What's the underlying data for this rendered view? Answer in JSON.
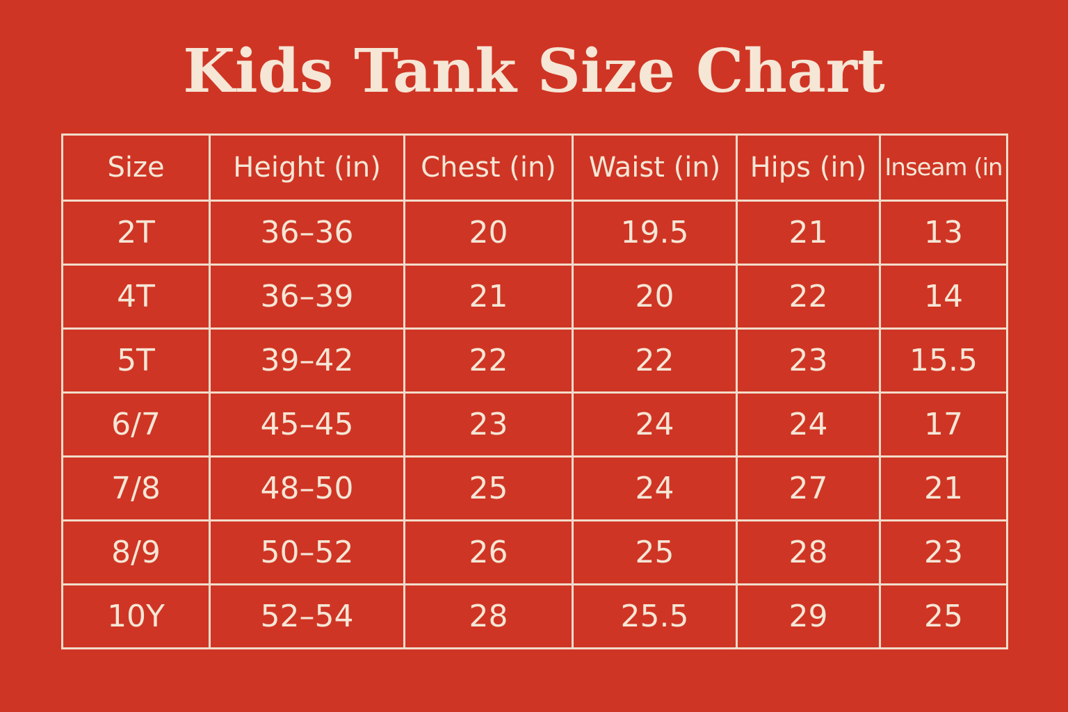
{
  "title": "Kids Tank Size Chart",
  "colors": {
    "background": "#cf3524",
    "text": "#f5e6d6",
    "grid": "#f2dccb"
  },
  "chart_data": {
    "type": "table",
    "title": "Kids Tank Size Chart",
    "columns": [
      "Size",
      "Height (in)",
      "Chest (in)",
      "Waist (in)",
      "Hips (in)",
      "Inseam (in"
    ],
    "rows": [
      [
        "2T",
        "36–36",
        "20",
        "19.5",
        "21",
        "13"
      ],
      [
        "4T",
        "36–39",
        "21",
        "20",
        "22",
        "14"
      ],
      [
        "5T",
        "39–42",
        "22",
        "22",
        "23",
        "15.5"
      ],
      [
        "6/7",
        "45–45",
        "23",
        "24",
        "24",
        "17"
      ],
      [
        "7/8",
        "48–50",
        "25",
        "24",
        "27",
        "21"
      ],
      [
        "8/9",
        "50–52",
        "26",
        "25",
        "28",
        "23"
      ],
      [
        "10Y",
        "52–54",
        "28",
        "25.5",
        "29",
        "25"
      ]
    ]
  }
}
